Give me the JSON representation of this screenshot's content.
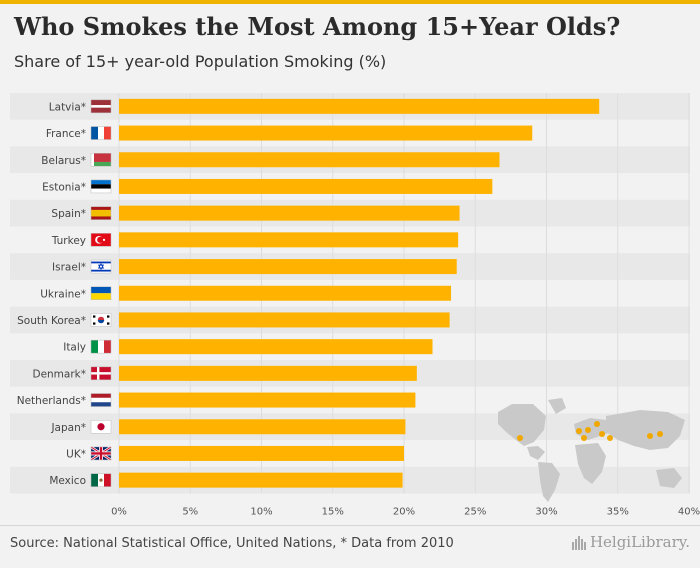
{
  "header": {
    "title": "Who Smokes the Most Among 15+Year Olds?",
    "subtitle": "Share of 15+ year-old Population Smoking (%)"
  },
  "footer": {
    "source": "Source: National Statistical Office, United Nations, * Data from 2010",
    "brand": "HelgiLibrary."
  },
  "colors": {
    "bar": "#ffb300",
    "row_band": "#e8e8e8",
    "grid": "#dddddd",
    "map_land": "#c9c9c9",
    "map_highlight": "#f0a800"
  },
  "chart_data": {
    "type": "bar",
    "orientation": "horizontal",
    "title": "Who Smokes the Most Among 15+Year Olds?",
    "subtitle": "Share of 15+ year-old Population Smoking (%)",
    "categories": [
      "Latvia*",
      "France*",
      "Belarus*",
      "Estonia*",
      "Spain*",
      "Turkey",
      "Israel*",
      "Ukraine*",
      "South Korea*",
      "Italy",
      "Denmark*",
      "Netherlands*",
      "Japan*",
      "UK*",
      "Mexico"
    ],
    "flags": [
      "latvia-flag-icon",
      "france-flag-icon",
      "belarus-flag-icon",
      "estonia-flag-icon",
      "spain-flag-icon",
      "turkey-flag-icon",
      "israel-flag-icon",
      "ukraine-flag-icon",
      "south-korea-flag-icon",
      "italy-flag-icon",
      "denmark-flag-icon",
      "netherlands-flag-icon",
      "japan-flag-icon",
      "uk-flag-icon",
      "mexico-flag-icon"
    ],
    "values": [
      33.7,
      29.0,
      26.7,
      26.2,
      23.9,
      23.8,
      23.7,
      23.3,
      23.2,
      22.0,
      20.9,
      20.8,
      20.1,
      20.0,
      19.9
    ],
    "xlim": [
      0,
      40
    ],
    "xticks": [
      "0%",
      "5%",
      "10%",
      "15%",
      "20%",
      "25%",
      "30%",
      "35%",
      "40%"
    ],
    "xlabel": "",
    "ylabel": "",
    "grid": true
  }
}
